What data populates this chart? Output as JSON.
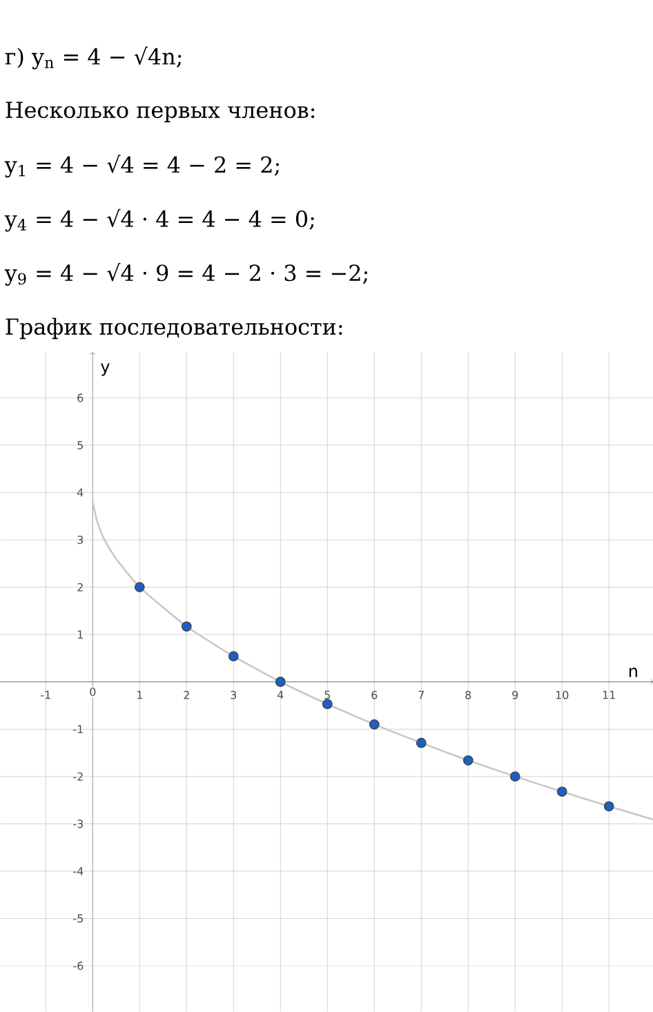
{
  "chart_data": {
    "type": "scatter",
    "annotations": [
      "г) y$_{n}$ = 4 − √4n;",
      "Несколько первых членов:",
      "y$_{1}$ = 4 − √4 = 4 − 2 = 2;",
      "y$_{4}$ = 4 − √4 · 4 = 4 − 4 = 0;",
      "y$_{9}$ = 4 − √4 · 9 = 4 − 2 · 3 = −2;",
      "График последовательности:"
    ],
    "xlabel": "n",
    "ylabel": "y",
    "xlim": [
      -1.97,
      11.94
    ],
    "ylim": [
      -6.97,
      6.97
    ],
    "xticks": [
      -1,
      0,
      1,
      2,
      3,
      4,
      5,
      6,
      7,
      8,
      9,
      10,
      11
    ],
    "yticks": [
      -6,
      -5,
      -4,
      -3,
      -2,
      -1,
      1,
      2,
      3,
      4,
      5,
      6
    ],
    "grid": true,
    "series": [
      {
        "type": "line",
        "color": "#c8c8c8",
        "line_style": "solid",
        "marker": "none",
        "x": [
          0,
          0.1,
          0.25,
          0.5,
          1,
          2,
          3,
          4,
          5,
          6,
          7,
          8,
          9,
          10,
          11,
          11.94
        ],
        "values": [
          3.8,
          3.37,
          3,
          2.6,
          2,
          1.17,
          0.54,
          0,
          -0.47,
          -0.9,
          -1.29,
          -1.66,
          -2,
          -2.32,
          -2.63,
          -2.91
        ]
      },
      {
        "type": "scatter",
        "color": "#1f5fbf",
        "marker": "circle",
        "x": [
          1,
          2,
          3,
          4,
          5,
          6,
          7,
          8,
          9,
          10,
          11
        ],
        "values": [
          2,
          1.17,
          0.54,
          0,
          -0.47,
          -0.9,
          -1.29,
          -1.66,
          -2,
          -2.32,
          -2.63
        ]
      }
    ]
  }
}
